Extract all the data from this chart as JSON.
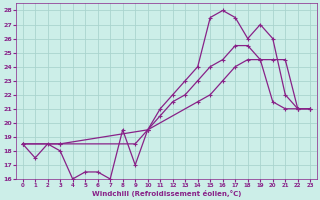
{
  "xlabel": "Windchill (Refroidissement éolien,°C)",
  "background_color": "#cceee8",
  "grid_color": "#aad4ce",
  "line_color": "#882288",
  "xlim": [
    -0.5,
    23.5
  ],
  "ylim": [
    16,
    28.5
  ],
  "xticks": [
    0,
    1,
    2,
    3,
    4,
    5,
    6,
    7,
    8,
    9,
    10,
    11,
    12,
    13,
    14,
    15,
    16,
    17,
    18,
    19,
    20,
    21,
    22,
    23
  ],
  "yticks": [
    16,
    17,
    18,
    19,
    20,
    21,
    22,
    23,
    24,
    25,
    26,
    27,
    28
  ],
  "series": [
    {
      "x": [
        0,
        1,
        2,
        3,
        4,
        5,
        6,
        7,
        8,
        9,
        10,
        11,
        12,
        13,
        14,
        15,
        16,
        17,
        18,
        19,
        20,
        21,
        22,
        23
      ],
      "y": [
        18.5,
        17.5,
        18.5,
        18.0,
        16.0,
        16.5,
        16.5,
        16.0,
        19.5,
        17.0,
        19.5,
        20.5,
        21.5,
        22.0,
        23.0,
        24.0,
        24.5,
        25.5,
        25.5,
        24.5,
        21.5,
        21.0,
        21.0,
        21.0
      ]
    },
    {
      "x": [
        0,
        3,
        10,
        14,
        15,
        16,
        17,
        18,
        19,
        20,
        21,
        22,
        23
      ],
      "y": [
        18.5,
        18.5,
        19.5,
        21.5,
        22.0,
        23.0,
        24.0,
        24.5,
        24.5,
        24.5,
        24.5,
        21.0,
        21.0
      ]
    },
    {
      "x": [
        0,
        3,
        9,
        10,
        11,
        12,
        13,
        14,
        15,
        16,
        17,
        18,
        19,
        20,
        21,
        22,
        23
      ],
      "y": [
        18.5,
        18.5,
        18.5,
        19.5,
        21.0,
        22.0,
        23.0,
        24.0,
        27.5,
        28.0,
        27.5,
        26.0,
        27.0,
        26.0,
        22.0,
        21.0,
        21.0
      ]
    }
  ]
}
